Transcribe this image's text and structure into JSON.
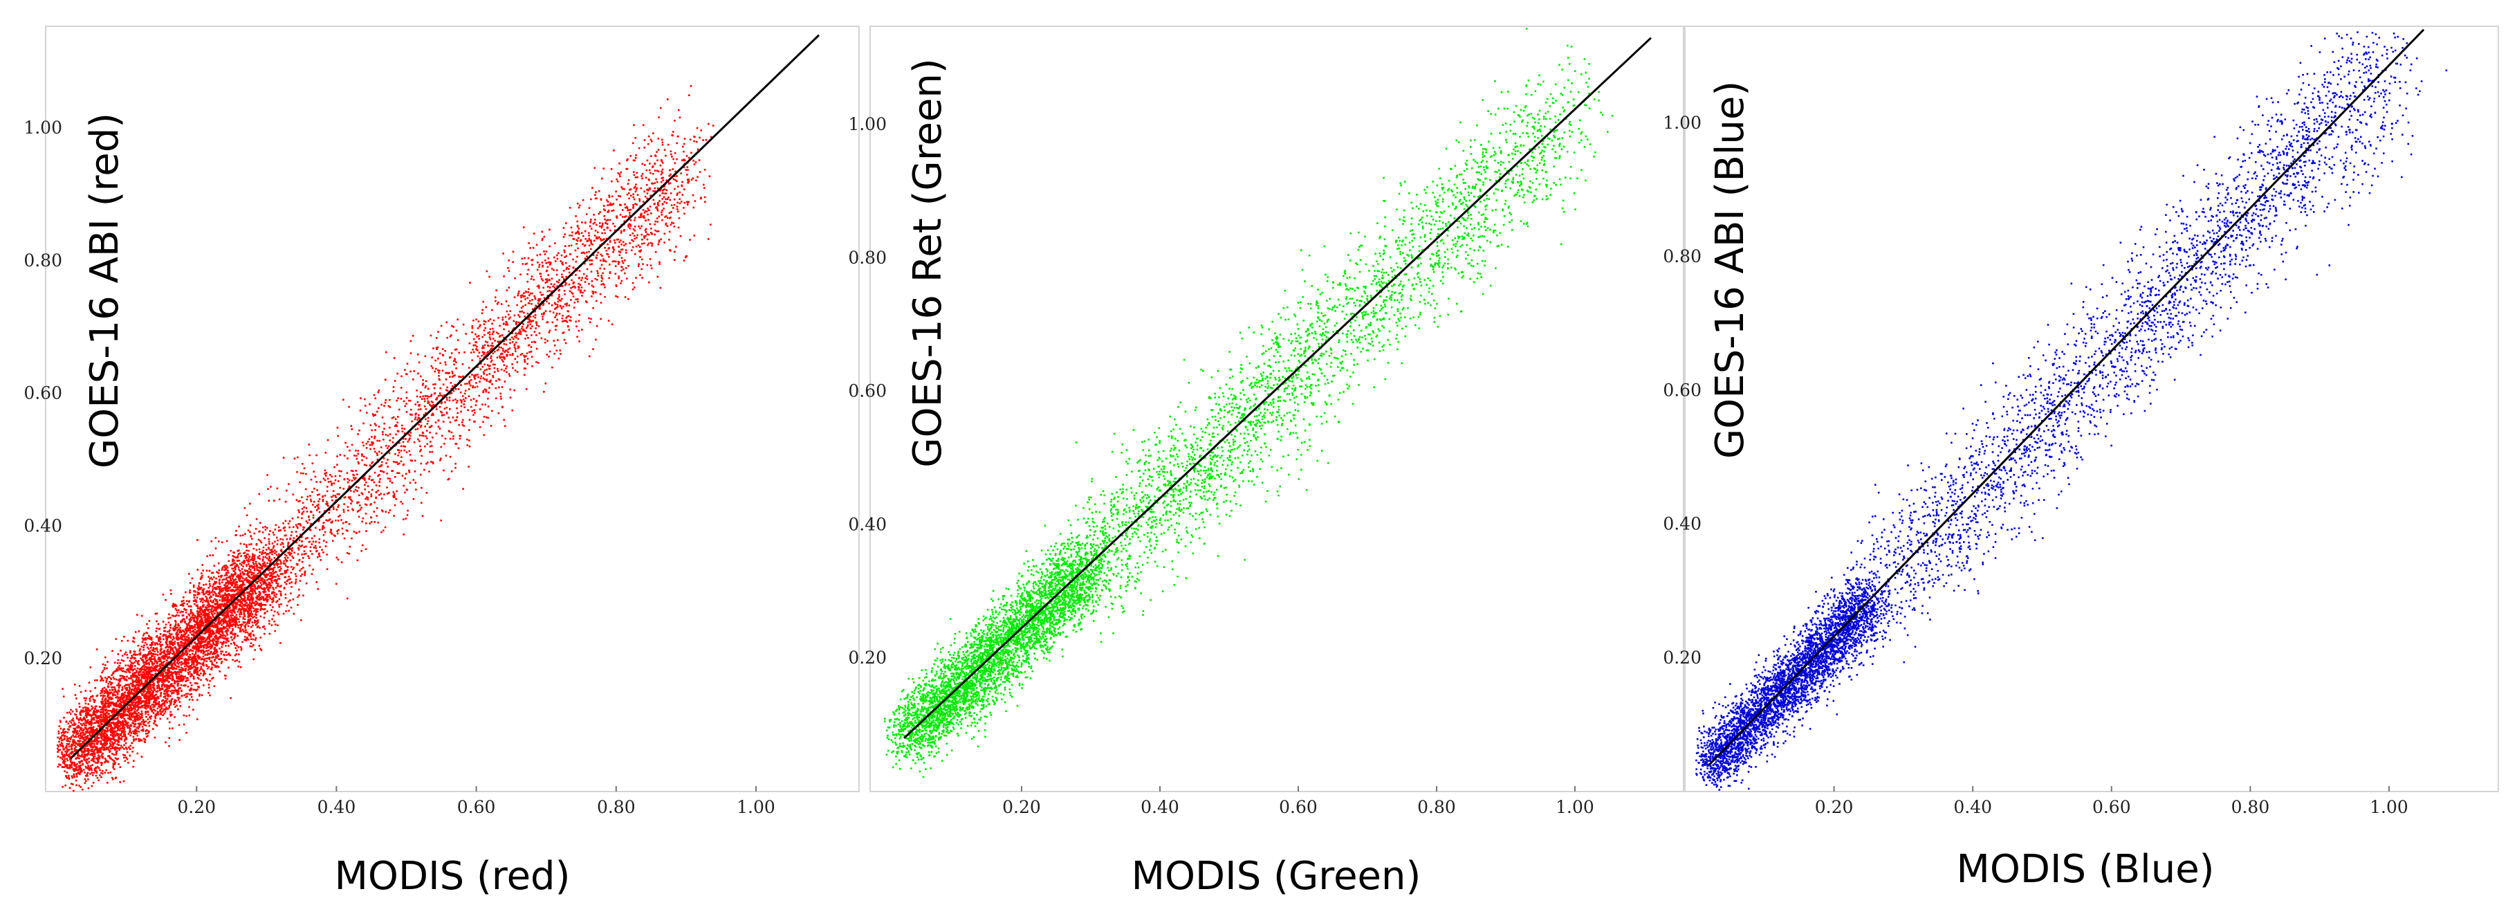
{
  "chart_data": [
    {
      "type": "scatter",
      "xlabel": "MODIS (red)",
      "ylabel": "GOES-16 ABI (red)",
      "series": [
        {
          "color": "#ff0000"
        }
      ],
      "xlim": [
        0.0,
        1.15
      ],
      "ylim": [
        0.0,
        1.15
      ],
      "xticks": [
        "0.20",
        "0.40",
        "0.60",
        "0.80",
        "1.00"
      ],
      "yticks": [
        "0.20",
        "0.40",
        "0.60",
        "0.80",
        "1.00"
      ],
      "reference_line": {
        "x": [
          0.02,
          1.09
        ],
        "y": [
          0.05,
          1.14
        ],
        "color": "#000000"
      },
      "point_density": [
        {
          "x_range": [
            0.02,
            0.3
          ],
          "n": 6000,
          "spread": 0.045
        },
        {
          "x_range": [
            0.3,
            0.6
          ],
          "n": 1200,
          "spread": 0.055
        },
        {
          "x_range": [
            0.6,
            0.9
          ],
          "n": 1500,
          "spread": 0.045
        }
      ]
    },
    {
      "type": "scatter",
      "xlabel": "MODIS (Green)",
      "ylabel": "GOES-16 Ret  (Green)",
      "series": [
        {
          "color": "#00e800"
        }
      ],
      "xlim": [
        0.0,
        1.15
      ],
      "ylim": [
        0.0,
        1.15
      ],
      "xticks": [
        "0.20",
        "0.40",
        "0.60",
        "0.80",
        "1.00"
      ],
      "yticks": [
        "0.20",
        "0.40",
        "0.60",
        "0.80",
        "1.00"
      ],
      "reference_line": {
        "x": [
          0.03,
          1.11
        ],
        "y": [
          0.08,
          1.13
        ],
        "color": "#000000"
      },
      "point_density": [
        {
          "x_range": [
            0.03,
            0.3
          ],
          "n": 4200,
          "spread": 0.04
        },
        {
          "x_range": [
            0.3,
            0.6
          ],
          "n": 1400,
          "spread": 0.06
        },
        {
          "x_range": [
            0.6,
            1.0
          ],
          "n": 1400,
          "spread": 0.05
        }
      ]
    },
    {
      "type": "scatter",
      "xlabel": "MODIS (Blue)",
      "ylabel": "GOES-16 ABI (Blue)",
      "series": [
        {
          "color": "#0000d8"
        }
      ],
      "xlim": [
        0.0,
        1.15
      ],
      "ylim": [
        0.0,
        1.15
      ],
      "xticks": [
        "0.20",
        "0.40",
        "0.60",
        "0.80",
        "1.00"
      ],
      "yticks": [
        "0.20",
        "0.40",
        "0.60",
        "0.80",
        "1.00"
      ],
      "reference_line": {
        "x": [
          0.02,
          1.05
        ],
        "y": [
          0.04,
          1.14
        ],
        "color": "#000000"
      },
      "point_density": [
        {
          "x_range": [
            0.02,
            0.25
          ],
          "n": 3800,
          "spread": 0.035
        },
        {
          "x_range": [
            0.25,
            0.6
          ],
          "n": 1300,
          "spread": 0.06
        },
        {
          "x_range": [
            0.6,
            1.0
          ],
          "n": 1600,
          "spread": 0.055
        }
      ]
    }
  ]
}
